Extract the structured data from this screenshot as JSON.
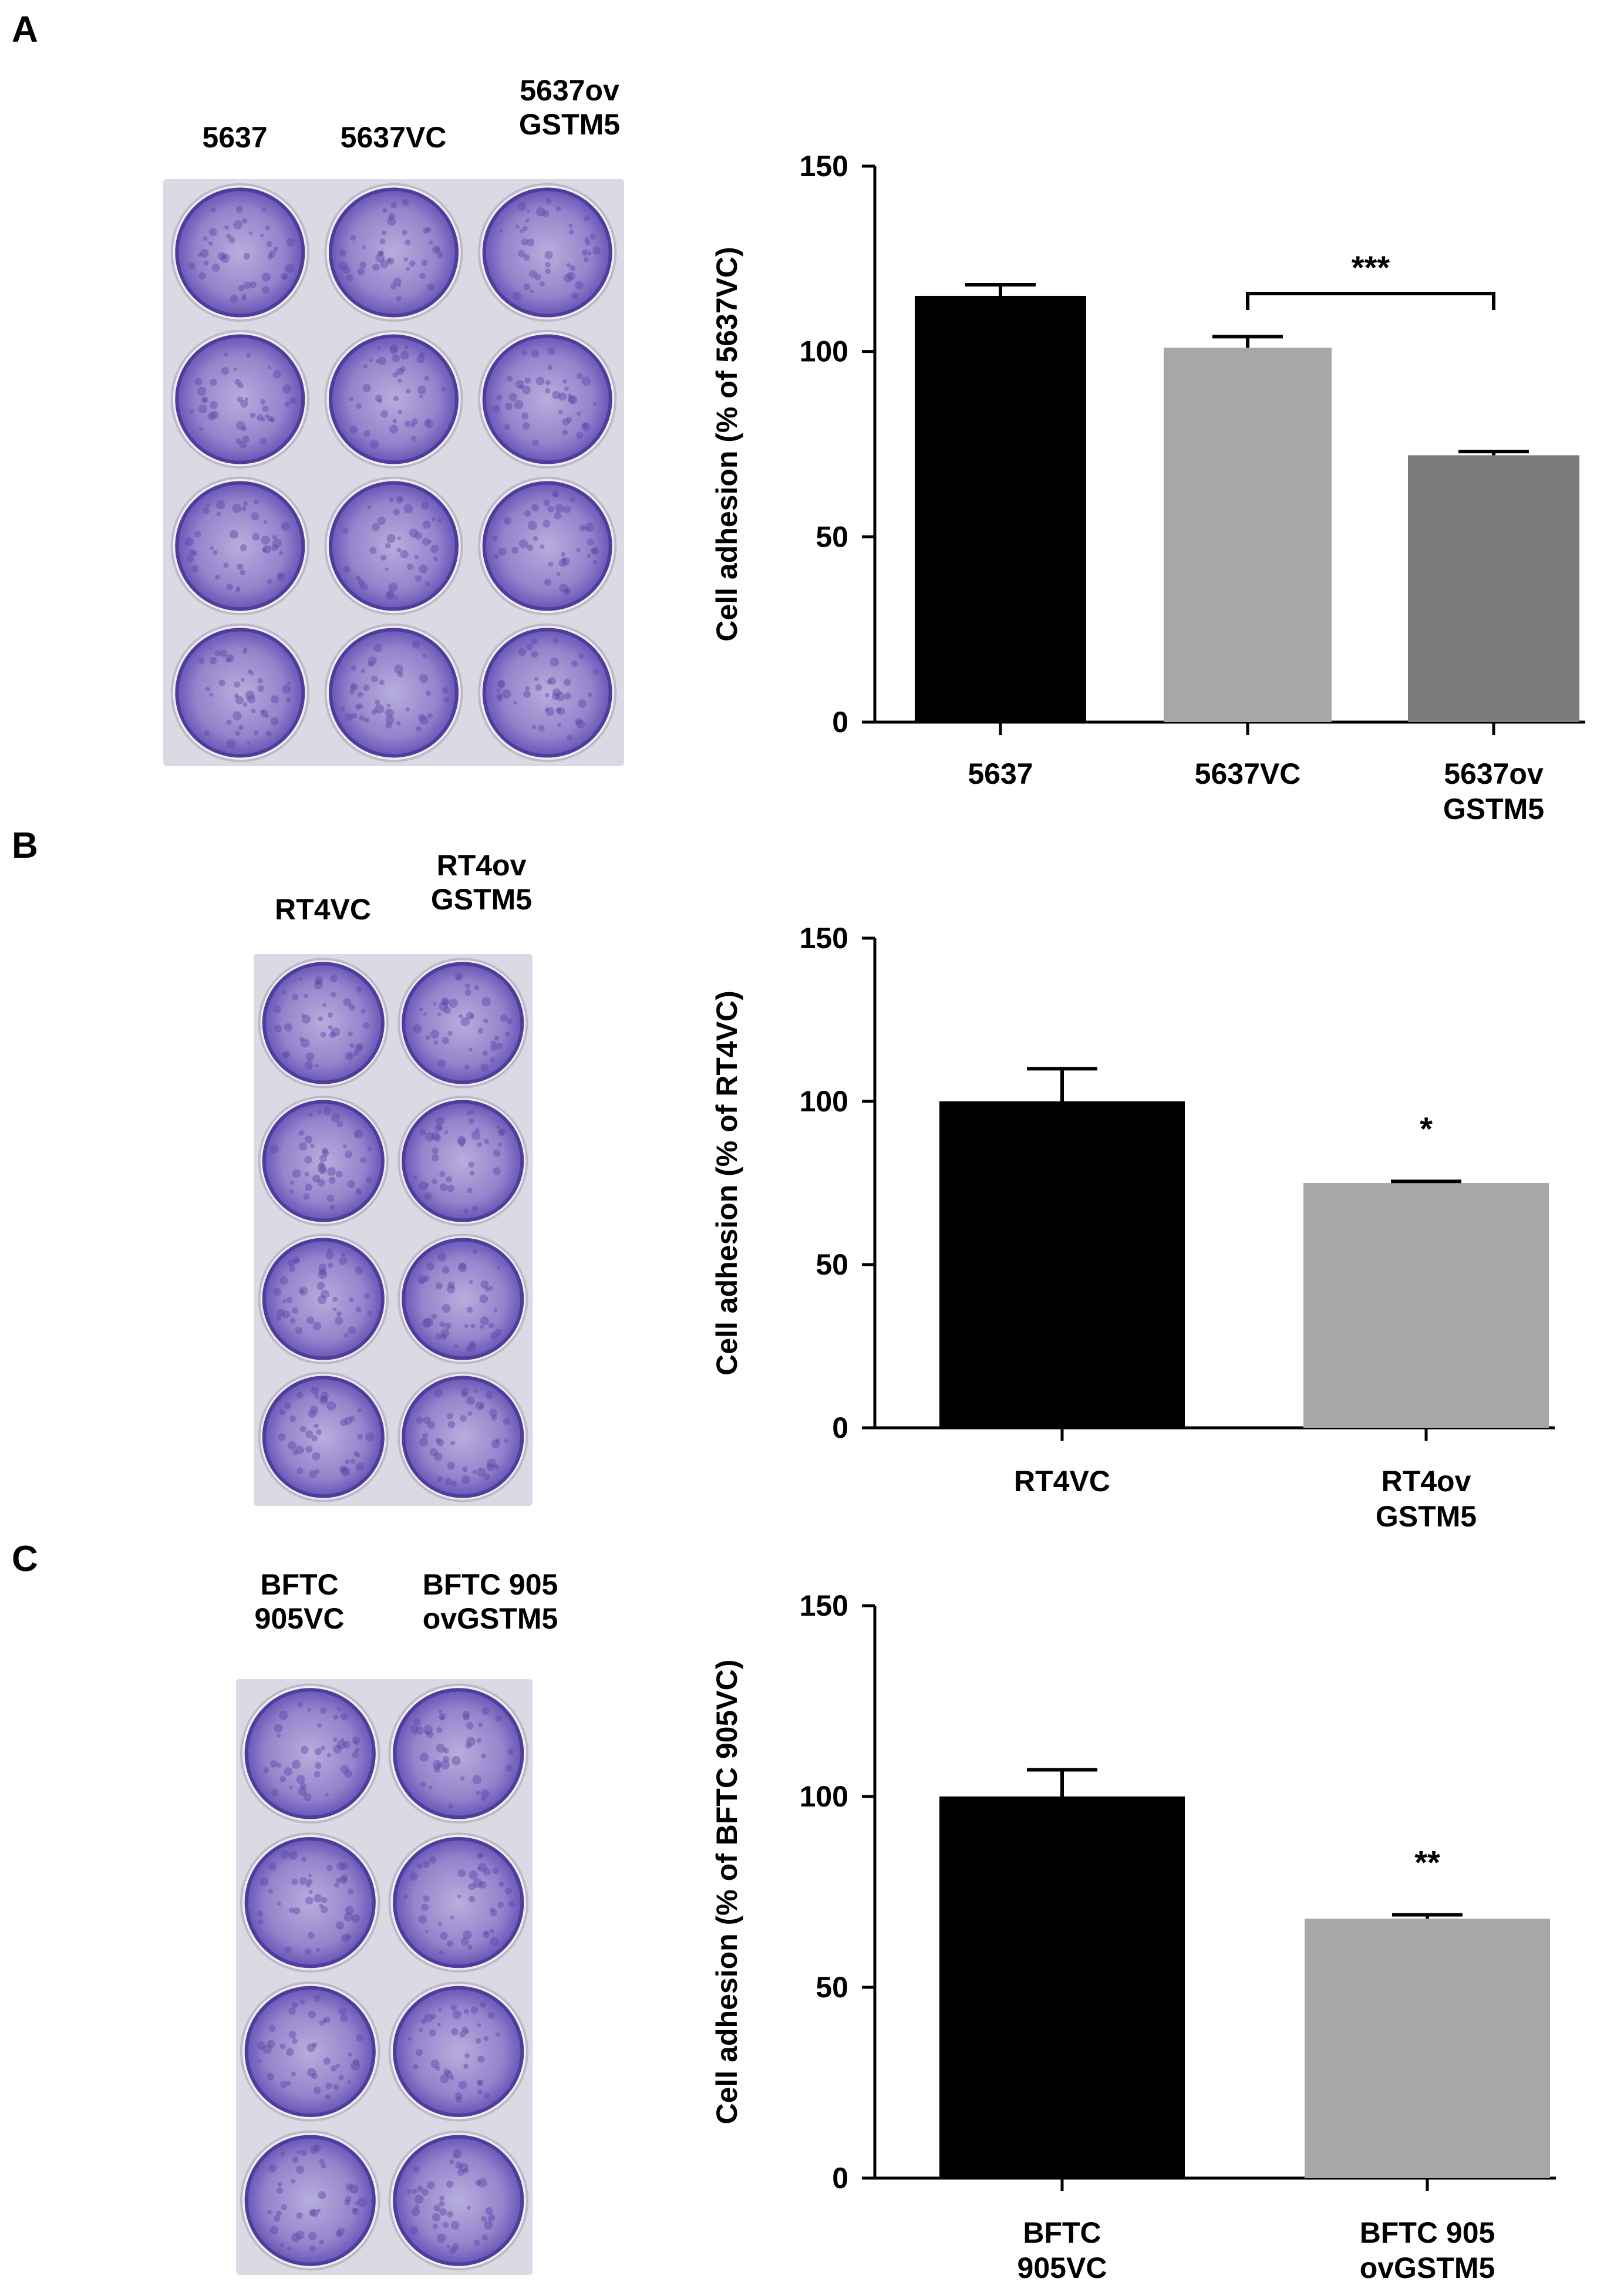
{
  "colors": {
    "bar_black": "#000000",
    "bar_light": "#a7a7aa",
    "bar_mid": "#7c7c7c",
    "crystal_violet": "#6a55b8",
    "plate_bg": "#dcd9e4"
  },
  "panels": [
    {
      "letter": "A",
      "plate_labels": [
        "5637",
        "5637VC",
        "5637ov\nGSTM5"
      ],
      "plate_columns": 3,
      "plate_rows": 4
    },
    {
      "letter": "B",
      "plate_labels": [
        "RT4VC",
        "RT4ov\nGSTM5"
      ],
      "plate_columns": 2,
      "plate_rows": 4
    },
    {
      "letter": "C",
      "plate_labels": [
        "BFTC\n905VC",
        "BFTC 905\novGSTM5"
      ],
      "plate_columns": 2,
      "plate_rows": 4
    }
  ],
  "chart_data": [
    {
      "type": "bar",
      "ylabel": "Cell adhesion (% of 5637VC)",
      "ylim": [
        0,
        150
      ],
      "yticks": [
        0,
        50,
        100,
        150
      ],
      "categories": [
        "5637",
        "5637VC",
        "5637ov\nGSTM5"
      ],
      "values": [
        115,
        101,
        72
      ],
      "errors": [
        3,
        3,
        1
      ],
      "bar_colors": [
        "#000000",
        "#a7a7aa",
        "#7c7c7c"
      ],
      "significance": [
        {
          "from": 1,
          "to": 2,
          "label": "***"
        }
      ],
      "grid": false
    },
    {
      "type": "bar",
      "ylabel": "Cell adhesion (% of RT4VC)",
      "ylim": [
        0,
        150
      ],
      "yticks": [
        0,
        50,
        100,
        150
      ],
      "categories": [
        "RT4VC",
        "RT4ov\nGSTM5"
      ],
      "values": [
        100,
        75
      ],
      "errors": [
        10,
        0.5
      ],
      "bar_colors": [
        "#000000",
        "#a7a7aa"
      ],
      "significance": [
        {
          "bar": 1,
          "label": "*"
        }
      ],
      "grid": false
    },
    {
      "type": "bar",
      "ylabel": "Cell adhesion (% of BFTC 905VC)",
      "ylim": [
        0,
        150
      ],
      "yticks": [
        0,
        50,
        100,
        150
      ],
      "categories": [
        "BFTC\n905VC",
        "BFTC 905\novGSTM5"
      ],
      "values": [
        100,
        68
      ],
      "errors": [
        7,
        1
      ],
      "bar_colors": [
        "#000000",
        "#a7a7aa"
      ],
      "significance": [
        {
          "bar": 1,
          "label": "**"
        }
      ],
      "grid": false
    }
  ]
}
